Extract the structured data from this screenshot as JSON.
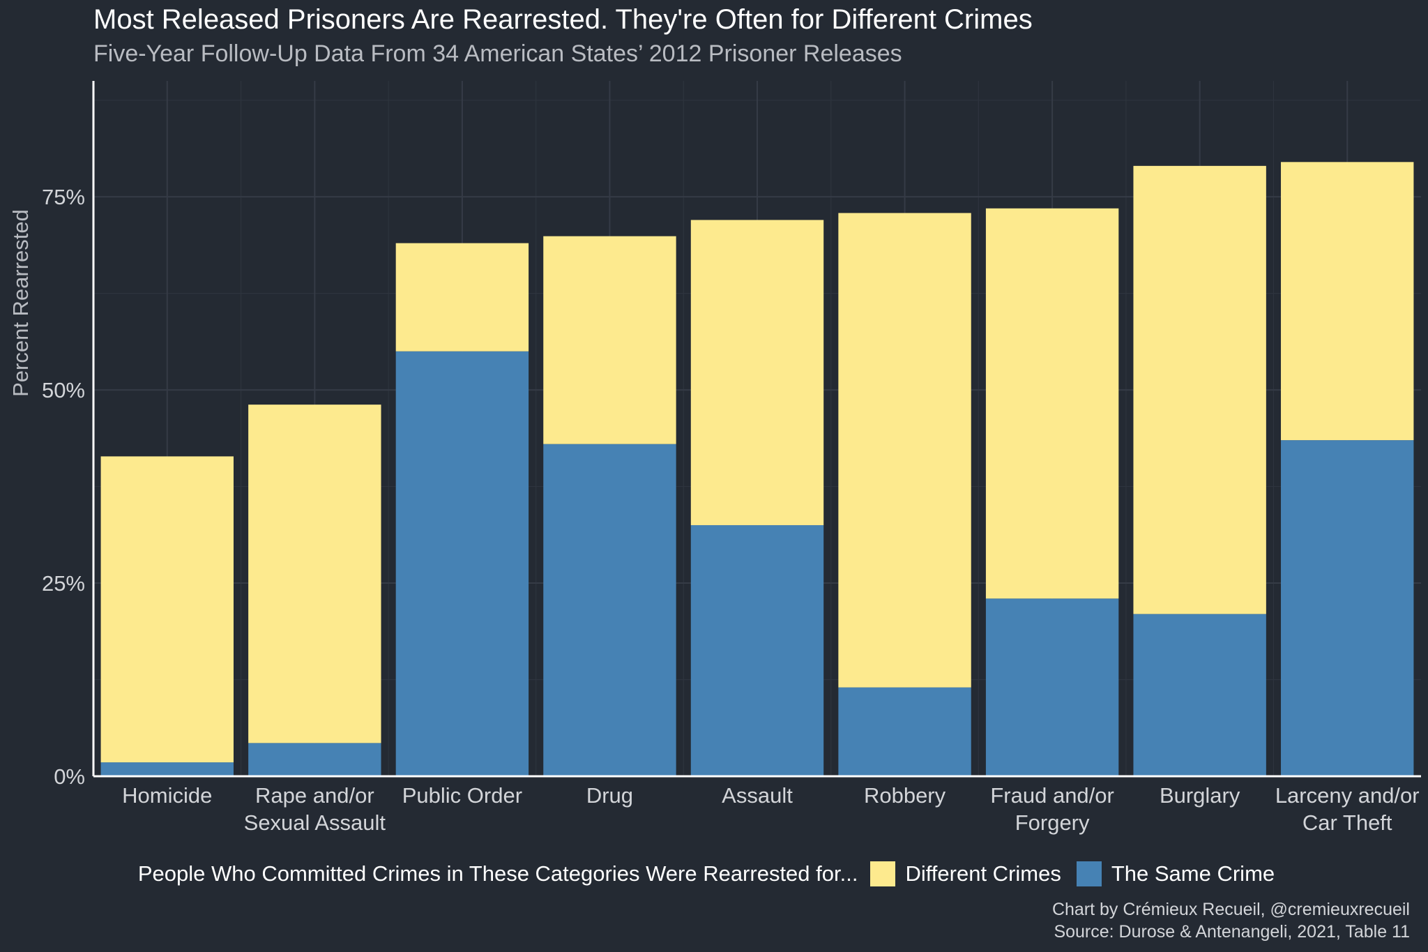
{
  "chart_data": {
    "type": "bar",
    "stacked": true,
    "title": "Most Released Prisoners Are Rearrested. They're Often for Different Crimes",
    "subtitle": "Five-Year Follow-Up Data From 34 American States’ 2012 Prisoner Releases",
    "xlabel": "",
    "ylabel": "Percent Rearrested",
    "ylim": [
      0,
      90
    ],
    "yticks": [
      0,
      25,
      50,
      75
    ],
    "ytick_labels": [
      "0%",
      "25%",
      "50%",
      "75%"
    ],
    "grid": true,
    "categories": [
      [
        "Homicide"
      ],
      [
        "Rape and/or",
        "Sexual Assault"
      ],
      [
        "Public Order"
      ],
      [
        "Drug"
      ],
      [
        "Assault"
      ],
      [
        "Robbery"
      ],
      [
        "Fraud and/or",
        "Forgery"
      ],
      [
        "Burglary"
      ],
      [
        "Larceny and/or",
        "Car Theft"
      ]
    ],
    "series": [
      {
        "name": "The Same Crime",
        "color": "#4682b4",
        "values": [
          1.8,
          4.3,
          55.0,
          43.0,
          32.5,
          11.5,
          23.0,
          21.0,
          43.5
        ]
      },
      {
        "name": "Different Crimes",
        "color": "#fdea8e",
        "values": [
          39.6,
          43.8,
          14.0,
          26.9,
          39.5,
          61.4,
          50.5,
          58.0,
          36.0
        ]
      }
    ],
    "legend": {
      "position": "bottom",
      "title": "People Who Committed Crimes in These Categories Were Rearrested for...",
      "order": [
        "Different Crimes",
        "The Same Crime"
      ]
    }
  },
  "caption": {
    "line1": "Chart by Crémieux Recueil, @cremieuxrecueil",
    "line2": "Source: Durose & Antenangeli, 2021, Table 11"
  }
}
